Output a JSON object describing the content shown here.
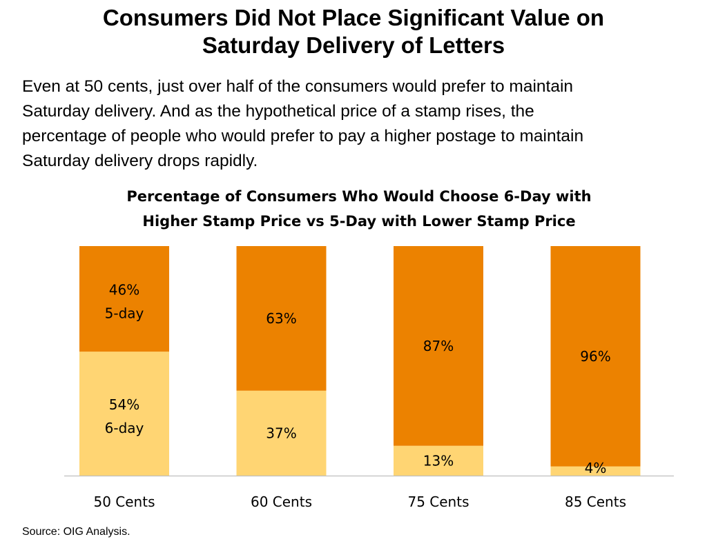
{
  "slide": {
    "title_lines": [
      "Consumers Did Not Place Significant Value on",
      "Saturday Delivery of Letters"
    ],
    "body_lines": [
      "Even at 50 cents, just over half of the consumers would prefer to maintain",
      "Saturday delivery. And as the hypothetical price of a stamp rises, the",
      "percentage of people who would prefer to pay a higher postage to maintain",
      "Saturday delivery drops rapidly."
    ],
    "source": "Source: OIG Analysis."
  },
  "chart_data": {
    "type": "bar",
    "stacked": true,
    "percent_stacked": true,
    "title_lines": [
      "Percentage of Consumers Who Would Choose 6-Day with",
      "Higher Stamp Price vs 5-Day with Lower Stamp Price"
    ],
    "categories": [
      "50 Cents",
      "60 Cents",
      "75 Cents",
      "85 Cents"
    ],
    "series": [
      {
        "name": "6-day",
        "values": [
          54,
          37,
          13,
          4
        ],
        "labels": [
          "54%",
          "37%",
          "13%",
          "4%"
        ],
        "color": "#FFD573"
      },
      {
        "name": "5-day",
        "values": [
          46,
          63,
          87,
          96
        ],
        "labels": [
          "46%",
          "63%",
          "87%",
          "96%"
        ],
        "color": "#EC8200"
      }
    ],
    "first_bar_series_names": true,
    "ylim": [
      0,
      100
    ],
    "grid": false,
    "legend": "none",
    "xlabel": "",
    "ylabel": ""
  }
}
